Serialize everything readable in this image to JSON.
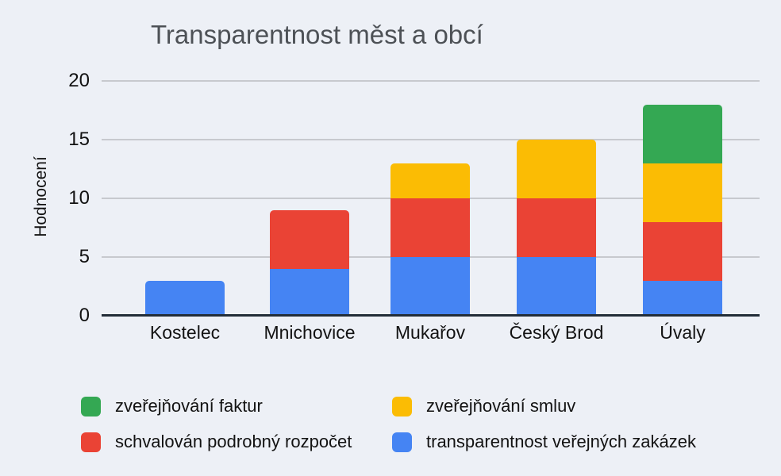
{
  "chart": {
    "title": "Transparentnost měst a obcí",
    "y_axis_label": "Hodnocení"
  },
  "chart_data": {
    "type": "bar",
    "stacked": true,
    "title": "Transparentnost měst a obcí",
    "xlabel": "",
    "ylabel": "Hodnocení",
    "ylim": [
      0,
      20
    ],
    "yticks": [
      0,
      5,
      10,
      15,
      20
    ],
    "grid": true,
    "legend_position": "bottom",
    "categories": [
      "Kostelec",
      "Mnichovice",
      "Mukařov",
      "Český Brod",
      "Úvaly"
    ],
    "series": [
      {
        "name": "transparentnost veřejných zakázek",
        "color": "#4584f3",
        "values": [
          3,
          4,
          5,
          5,
          3
        ]
      },
      {
        "name": "schvalován podrobný rozpočet",
        "color": "#ea4335",
        "values": [
          0,
          5,
          5,
          5,
          5
        ]
      },
      {
        "name": "zveřejňování smluv",
        "color": "#fbbc04",
        "values": [
          0,
          0,
          3,
          5,
          5
        ]
      },
      {
        "name": "zveřejňování faktur",
        "color": "#34a853",
        "values": [
          0,
          0,
          0,
          0,
          5
        ]
      }
    ],
    "totals": [
      3,
      9,
      13,
      15,
      18
    ]
  },
  "legend": {
    "items": [
      {
        "label": "zveřejňování faktur",
        "color": "#34a853"
      },
      {
        "label": "zveřejňování smluv",
        "color": "#fbbc04"
      },
      {
        "label": "schvalován podrobný rozpočet",
        "color": "#ea4335"
      },
      {
        "label": "transparentnost veřejných zakázek",
        "color": "#4584f3"
      }
    ]
  },
  "colors": {
    "background": "#edf0f6",
    "gridline": "#c7c9ce",
    "axis_line": "#222d38",
    "title_text": "#4d5156",
    "label_text": "#131313"
  }
}
